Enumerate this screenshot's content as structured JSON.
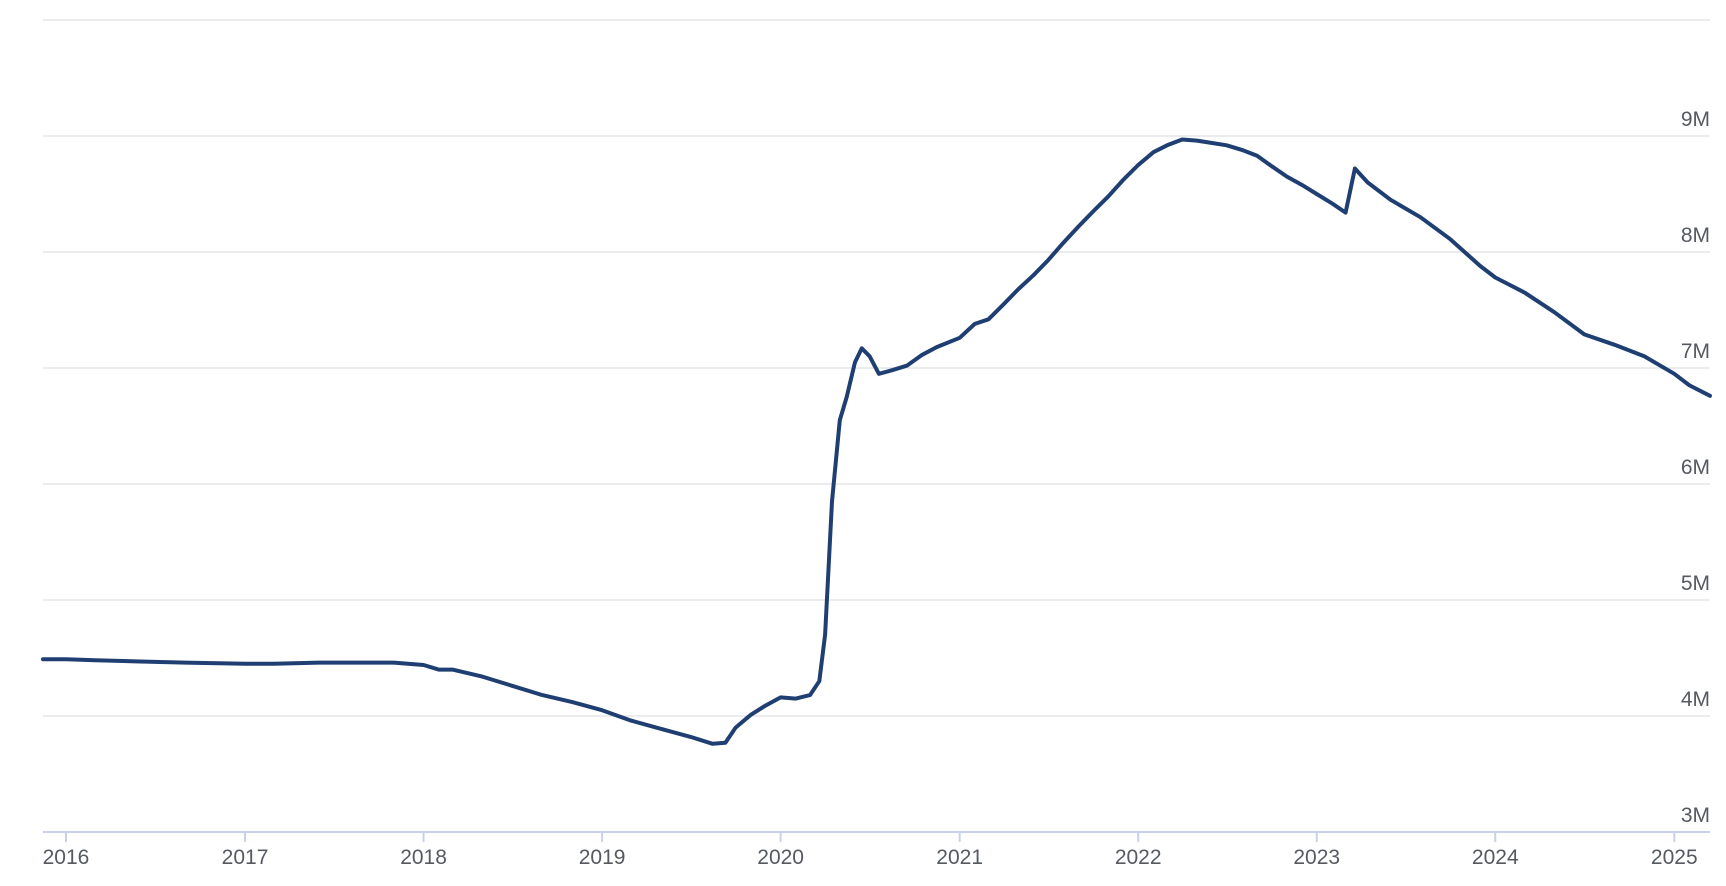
{
  "chart_data": {
    "type": "line",
    "title": "",
    "xlabel": "",
    "ylabel": "",
    "ylim": [
      3000000,
      10000000
    ],
    "xlim": [
      "2015-11-15",
      "2025-03-15"
    ],
    "grid": true,
    "legend": "none",
    "line_color": "#1f3f73",
    "y_ticks": [
      {
        "value": 3000000,
        "label": "3M"
      },
      {
        "value": 4000000,
        "label": "4M"
      },
      {
        "value": 5000000,
        "label": "5M"
      },
      {
        "value": 6000000,
        "label": "6M"
      },
      {
        "value": 7000000,
        "label": "7M"
      },
      {
        "value": 8000000,
        "label": "8M"
      },
      {
        "value": 9000000,
        "label": "9M"
      }
    ],
    "x_ticks": [
      {
        "value": "2016-01-01",
        "label": "2016"
      },
      {
        "value": "2017-01-01",
        "label": "2017"
      },
      {
        "value": "2018-01-01",
        "label": "2018"
      },
      {
        "value": "2019-01-01",
        "label": "2019"
      },
      {
        "value": "2020-01-01",
        "label": "2020"
      },
      {
        "value": "2021-01-01",
        "label": "2021"
      },
      {
        "value": "2022-01-01",
        "label": "2022"
      },
      {
        "value": "2023-01-01",
        "label": "2023"
      },
      {
        "value": "2024-01-01",
        "label": "2024"
      },
      {
        "value": "2025-01-01",
        "label": "2025"
      }
    ],
    "series": [
      {
        "name": "",
        "points": [
          [
            "2015-11-15",
            4490000
          ],
          [
            "2016-01-01",
            4490000
          ],
          [
            "2016-03-01",
            4480000
          ],
          [
            "2016-06-01",
            4470000
          ],
          [
            "2016-09-01",
            4460000
          ],
          [
            "2017-01-01",
            4450000
          ],
          [
            "2017-03-01",
            4450000
          ],
          [
            "2017-06-01",
            4460000
          ],
          [
            "2017-09-01",
            4460000
          ],
          [
            "2017-11-01",
            4460000
          ],
          [
            "2018-01-01",
            4440000
          ],
          [
            "2018-02-01",
            4400000
          ],
          [
            "2018-03-01",
            4400000
          ],
          [
            "2018-05-01",
            4340000
          ],
          [
            "2018-07-01",
            4260000
          ],
          [
            "2018-09-01",
            4180000
          ],
          [
            "2018-11-01",
            4120000
          ],
          [
            "2019-01-01",
            4050000
          ],
          [
            "2019-03-01",
            3960000
          ],
          [
            "2019-05-01",
            3890000
          ],
          [
            "2019-07-01",
            3820000
          ],
          [
            "2019-08-15",
            3760000
          ],
          [
            "2019-09-10",
            3770000
          ],
          [
            "2019-10-01",
            3900000
          ],
          [
            "2019-11-01",
            4010000
          ],
          [
            "2019-12-01",
            4090000
          ],
          [
            "2020-01-01",
            4160000
          ],
          [
            "2020-02-01",
            4150000
          ],
          [
            "2020-03-01",
            4180000
          ],
          [
            "2020-03-20",
            4300000
          ],
          [
            "2020-04-01",
            4700000
          ],
          [
            "2020-04-15",
            5850000
          ],
          [
            "2020-05-01",
            6550000
          ],
          [
            "2020-05-15",
            6750000
          ],
          [
            "2020-06-01",
            7050000
          ],
          [
            "2020-06-15",
            7170000
          ],
          [
            "2020-07-01",
            7100000
          ],
          [
            "2020-07-20",
            6950000
          ],
          [
            "2020-08-15",
            6980000
          ],
          [
            "2020-09-15",
            7020000
          ],
          [
            "2020-10-15",
            7110000
          ],
          [
            "2020-11-15",
            7180000
          ],
          [
            "2021-01-01",
            7260000
          ],
          [
            "2021-02-01",
            7380000
          ],
          [
            "2021-03-01",
            7420000
          ],
          [
            "2021-04-01",
            7550000
          ],
          [
            "2021-05-01",
            7680000
          ],
          [
            "2021-06-01",
            7800000
          ],
          [
            "2021-07-01",
            7930000
          ],
          [
            "2021-08-01",
            8080000
          ],
          [
            "2021-09-01",
            8220000
          ],
          [
            "2021-10-01",
            8350000
          ],
          [
            "2021-11-01",
            8480000
          ],
          [
            "2021-12-01",
            8620000
          ],
          [
            "2022-01-01",
            8750000
          ],
          [
            "2022-02-01",
            8860000
          ],
          [
            "2022-03-01",
            8920000
          ],
          [
            "2022-04-01",
            8970000
          ],
          [
            "2022-05-01",
            8960000
          ],
          [
            "2022-06-01",
            8940000
          ],
          [
            "2022-07-01",
            8920000
          ],
          [
            "2022-08-01",
            8880000
          ],
          [
            "2022-09-01",
            8830000
          ],
          [
            "2022-10-01",
            8740000
          ],
          [
            "2022-11-01",
            8650000
          ],
          [
            "2022-12-01",
            8580000
          ],
          [
            "2023-01-01",
            8500000
          ],
          [
            "2023-02-01",
            8420000
          ],
          [
            "2023-03-01",
            8340000
          ],
          [
            "2023-03-20",
            8720000
          ],
          [
            "2023-04-15",
            8600000
          ],
          [
            "2023-06-01",
            8450000
          ],
          [
            "2023-08-01",
            8300000
          ],
          [
            "2023-10-01",
            8110000
          ],
          [
            "2023-12-01",
            7880000
          ],
          [
            "2024-01-01",
            7780000
          ],
          [
            "2024-03-01",
            7650000
          ],
          [
            "2024-05-01",
            7480000
          ],
          [
            "2024-07-01",
            7290000
          ],
          [
            "2024-09-01",
            7200000
          ],
          [
            "2024-11-01",
            7100000
          ],
          [
            "2025-01-01",
            6950000
          ],
          [
            "2025-02-01",
            6850000
          ],
          [
            "2025-03-15",
            6760000
          ]
        ]
      }
    ]
  }
}
